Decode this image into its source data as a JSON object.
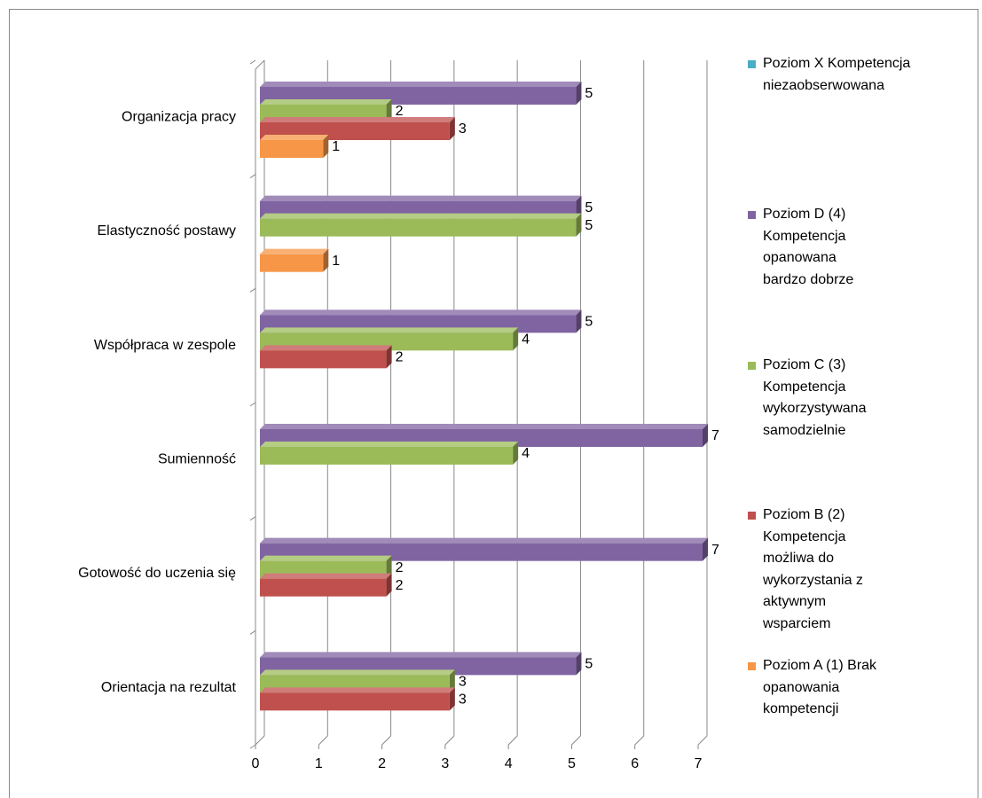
{
  "chart_data": {
    "type": "bar3d-horizontal",
    "categories": [
      "Organizacja pracy",
      "Elastyczność postawy",
      "Współpraca w zespole",
      "Sumienność ",
      "Gotowość do uczenia się",
      "Orientacja na rezultat"
    ],
    "series": [
      {
        "name": "Poziom X Kompetencja niezaobserwowana",
        "color": "#4bacc6",
        "values": [
          null,
          null,
          null,
          null,
          null,
          null
        ]
      },
      {
        "name": "Poziom D (4) Kompetencja opanowana bardzo dobrze",
        "color": "#8064a2",
        "values": [
          5,
          5,
          5,
          7,
          7,
          5
        ]
      },
      {
        "name": "Poziom C (3) Kompetencja wykorzystywana samodzielnie",
        "color": "#9bbb59",
        "values": [
          2,
          5,
          4,
          4,
          2,
          3
        ]
      },
      {
        "name": "Poziom B (2) Kompetencja możliwa do wykorzystania z aktywnym wsparciem",
        "color": "#c0504d",
        "values": [
          3,
          null,
          2,
          null,
          2,
          3
        ]
      },
      {
        "name": "Poziom A (1) Brak opanowania kompetencji",
        "color": "#f79646",
        "values": [
          1,
          1,
          null,
          null,
          null,
          null
        ]
      }
    ],
    "xlim": [
      0,
      7
    ],
    "xticks": [
      0,
      1,
      2,
      3,
      4,
      5,
      6,
      7
    ],
    "grid": true,
    "legend": "right"
  }
}
